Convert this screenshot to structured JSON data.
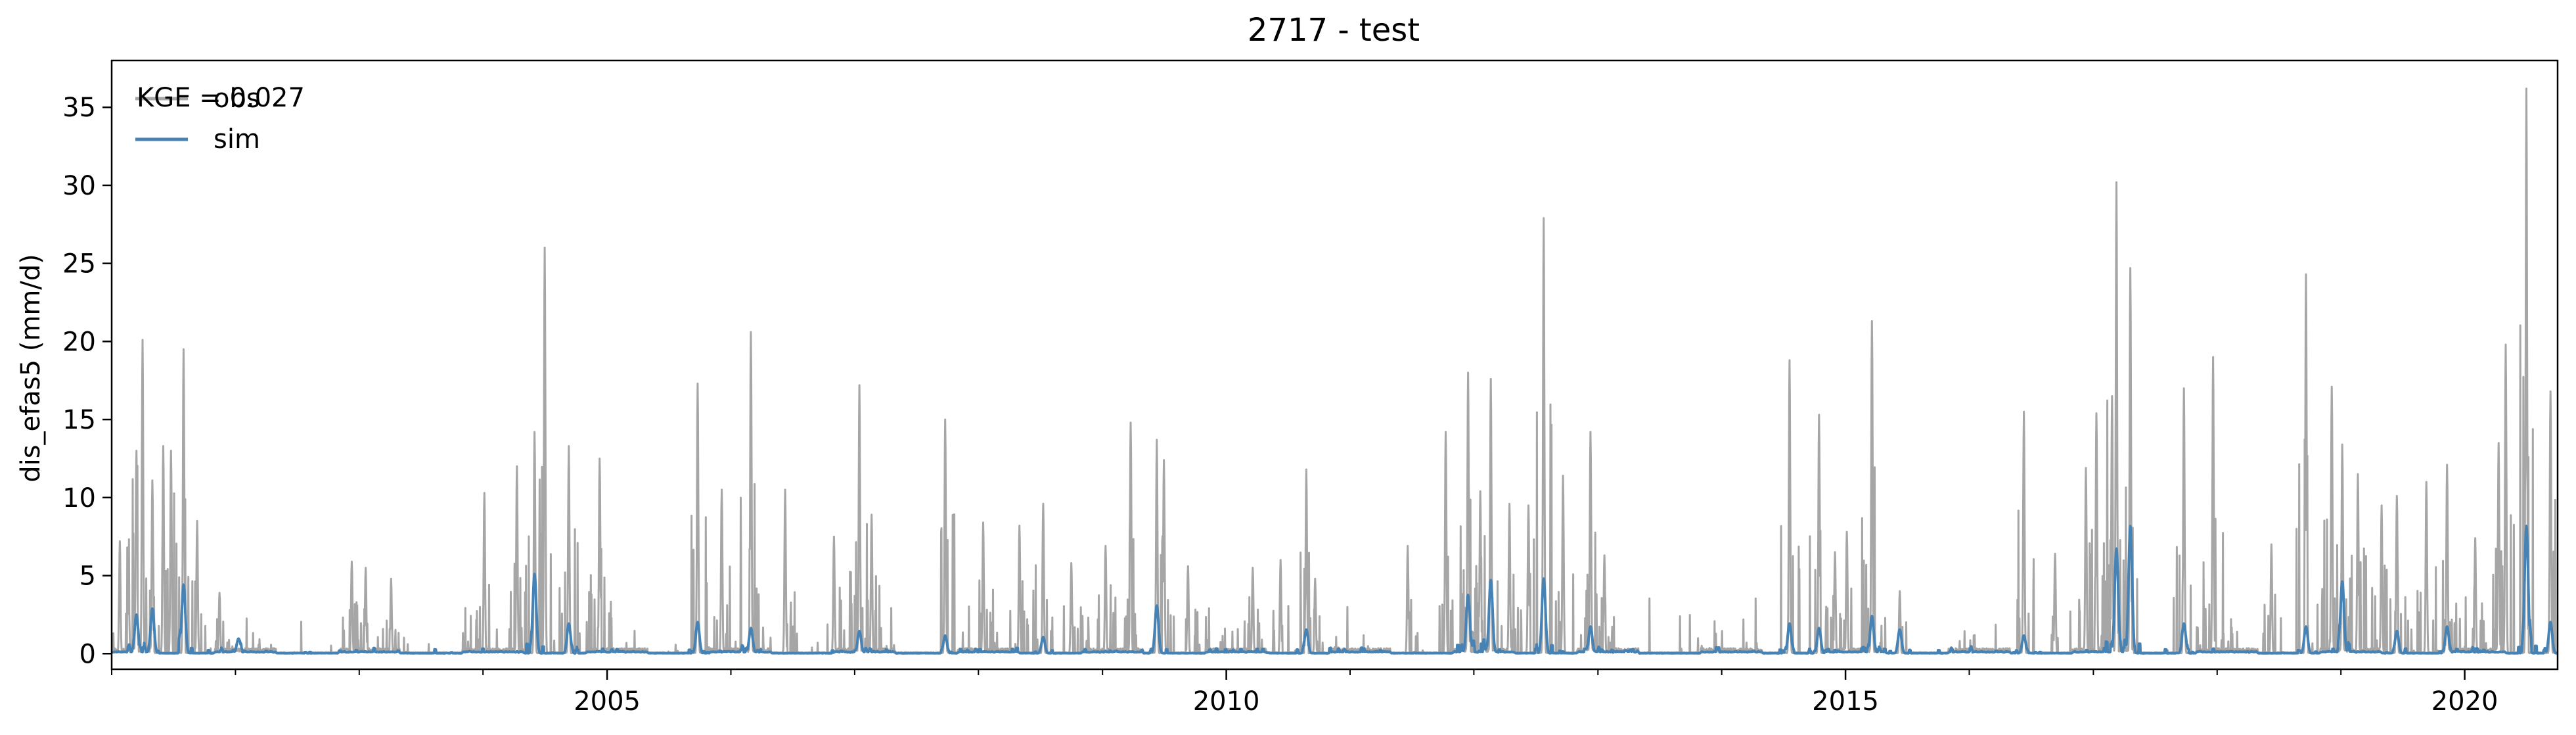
{
  "chart_data": {
    "type": "line",
    "title": "2717 - test",
    "xlabel": "",
    "ylabel": "dis_efas5 (mm/d)",
    "annotation": "KGE = 0.027",
    "xlim": [
      "2001-01-01",
      "2020-10-01"
    ],
    "ylim": [
      -1,
      38
    ],
    "xticks": [
      "2005",
      "2010",
      "2015",
      "2020"
    ],
    "yticks": [
      0,
      5,
      10,
      15,
      20,
      25,
      30,
      35
    ],
    "grid": false,
    "legend_position": "top-left",
    "colors": {
      "obs": "#a6a6a6",
      "sim": "#4682b4"
    },
    "series": [
      {
        "name": "obs",
        "color": "#a6a6a6",
        "peaks": [
          [
            "2001-01-25",
            7.2
          ],
          [
            "2001-02-20",
            4.2
          ],
          [
            "2001-03-15",
            13.0
          ],
          [
            "2001-04-02",
            20.1
          ],
          [
            "2001-05-01",
            11.1
          ],
          [
            "2001-06-02",
            13.3
          ],
          [
            "2001-06-25",
            13.0
          ],
          [
            "2001-08-01",
            19.5
          ],
          [
            "2001-09-10",
            8.5
          ],
          [
            "2001-11-15",
            3.9
          ],
          [
            "2002-12-10",
            5.9
          ],
          [
            "2003-01-20",
            5.5
          ],
          [
            "2003-04-05",
            4.8
          ],
          [
            "2004-01-05",
            10.3
          ],
          [
            "2004-04-10",
            12.0
          ],
          [
            "2004-06-01",
            14.2
          ],
          [
            "2004-07-01",
            26.0
          ],
          [
            "2004-09-10",
            13.3
          ],
          [
            "2004-12-10",
            12.5
          ],
          [
            "2005-09-25",
            17.3
          ],
          [
            "2005-12-05",
            10.5
          ],
          [
            "2006-03-01",
            20.6
          ],
          [
            "2006-06-10",
            10.5
          ],
          [
            "2006-11-01",
            7.5
          ],
          [
            "2007-01-15",
            17.2
          ],
          [
            "2007-02-20",
            8.9
          ],
          [
            "2007-09-25",
            15.0
          ],
          [
            "2008-01-15",
            8.4
          ],
          [
            "2008-05-01",
            8.2
          ],
          [
            "2008-07-10",
            9.6
          ],
          [
            "2008-10-01",
            5.8
          ],
          [
            "2009-01-10",
            6.9
          ],
          [
            "2009-03-25",
            14.8
          ],
          [
            "2009-06-10",
            13.7
          ],
          [
            "2009-07-01",
            12.4
          ],
          [
            "2009-09-10",
            5.6
          ],
          [
            "2010-03-20",
            5.5
          ],
          [
            "2010-06-10",
            6.0
          ],
          [
            "2010-08-25",
            11.8
          ],
          [
            "2010-09-20",
            4.8
          ],
          [
            "2011-06-20",
            6.9
          ],
          [
            "2011-10-10",
            14.2
          ],
          [
            "2011-12-15",
            18.0
          ],
          [
            "2012-01-20",
            10.4
          ],
          [
            "2012-02-20",
            17.6
          ],
          [
            "2012-04-15",
            9.6
          ],
          [
            "2012-06-10",
            9.5
          ],
          [
            "2012-07-25",
            27.9
          ],
          [
            "2012-09-20",
            11.4
          ],
          [
            "2012-12-10",
            14.2
          ],
          [
            "2013-01-20",
            6.3
          ],
          [
            "2014-07-20",
            18.8
          ],
          [
            "2014-10-15",
            15.3
          ],
          [
            "2014-12-01",
            6.5
          ],
          [
            "2015-01-05",
            7.8
          ],
          [
            "2015-03-20",
            21.3
          ],
          [
            "2015-06-10",
            4.0
          ],
          [
            "2016-06-10",
            15.5
          ],
          [
            "2016-09-10",
            6.4
          ],
          [
            "2016-12-10",
            11.9
          ],
          [
            "2017-01-10",
            15.4
          ],
          [
            "2017-02-25",
            16.5
          ],
          [
            "2017-03-10",
            30.2
          ],
          [
            "2017-04-20",
            24.7
          ],
          [
            "2017-09-25",
            17.0
          ],
          [
            "2017-12-20",
            19.0
          ],
          [
            "2018-06-10",
            7.0
          ],
          [
            "2018-09-20",
            24.3
          ],
          [
            "2018-12-05",
            17.1
          ],
          [
            "2019-01-05",
            13.4
          ],
          [
            "2019-02-20",
            11.5
          ],
          [
            "2019-05-01",
            9.5
          ],
          [
            "2019-06-15",
            10.1
          ],
          [
            "2019-09-10",
            11.0
          ],
          [
            "2019-11-10",
            12.1
          ],
          [
            "2020-02-01",
            7.4
          ],
          [
            "2020-04-10",
            13.5
          ],
          [
            "2020-05-01",
            19.8
          ],
          [
            "2020-07-01",
            36.2
          ],
          [
            "2020-09-10",
            16.8
          ]
        ]
      },
      {
        "name": "sim",
        "color": "#4682b4",
        "peaks": [
          [
            "2001-03-15",
            2.6
          ],
          [
            "2001-05-01",
            3.0
          ],
          [
            "2001-08-01",
            4.6
          ],
          [
            "2002-01-10",
            1.0
          ],
          [
            "2004-06-01",
            5.3
          ],
          [
            "2004-09-10",
            2.0
          ],
          [
            "2005-09-25",
            2.1
          ],
          [
            "2006-03-01",
            1.7
          ],
          [
            "2007-01-15",
            1.5
          ],
          [
            "2007-09-25",
            1.2
          ],
          [
            "2008-07-10",
            1.1
          ],
          [
            "2009-06-10",
            3.2
          ],
          [
            "2010-08-25",
            1.6
          ],
          [
            "2011-12-15",
            3.9
          ],
          [
            "2012-02-20",
            4.9
          ],
          [
            "2012-07-25",
            5.0
          ],
          [
            "2012-12-10",
            1.8
          ],
          [
            "2014-07-20",
            2.0
          ],
          [
            "2014-10-15",
            1.7
          ],
          [
            "2015-03-20",
            2.5
          ],
          [
            "2015-06-10",
            1.6
          ],
          [
            "2016-06-10",
            1.2
          ],
          [
            "2017-03-10",
            7.0
          ],
          [
            "2017-04-20",
            8.5
          ],
          [
            "2017-09-25",
            2.0
          ],
          [
            "2018-09-20",
            1.8
          ],
          [
            "2019-01-05",
            4.8
          ],
          [
            "2019-06-15",
            1.5
          ],
          [
            "2019-11-10",
            1.8
          ],
          [
            "2020-07-01",
            8.5
          ],
          [
            "2020-09-10",
            2.1
          ]
        ]
      }
    ]
  }
}
